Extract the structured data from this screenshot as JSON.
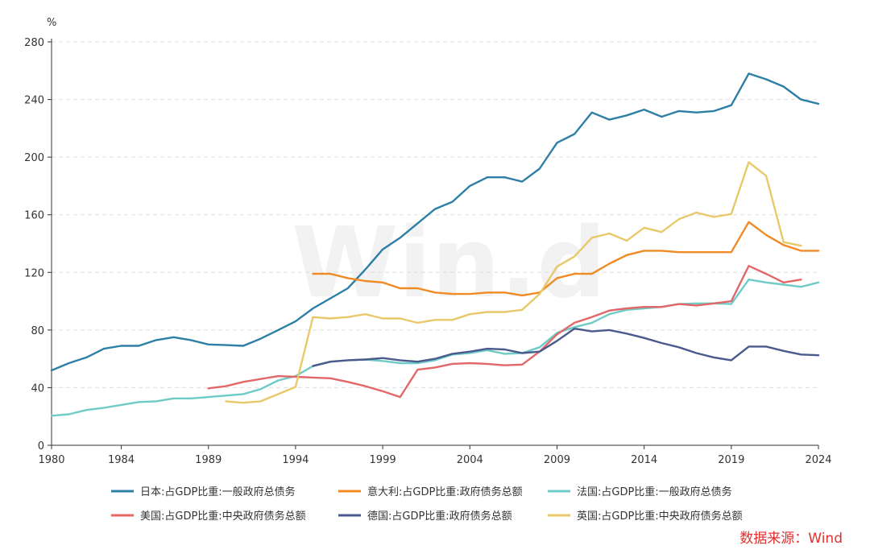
{
  "watermark": "Win.d",
  "source": "数据来源：Wind",
  "colors": {
    "jp": "#2e7fa6",
    "it": "#f08a24",
    "fr": "#6ecbc7",
    "us": "#e26768",
    "de": "#4a5a8c",
    "uk": "#e8c96a"
  },
  "chart_data": {
    "type": "line",
    "ylabel": "%",
    "ylim": [
      0,
      280
    ],
    "yticks": [
      0,
      40,
      80,
      120,
      160,
      200,
      240,
      280
    ],
    "xlim": [
      1980,
      2024
    ],
    "xticks": [
      1980,
      1984,
      1989,
      1994,
      1999,
      2004,
      2009,
      2014,
      2019,
      2024
    ],
    "grid": "horizontal-dashed",
    "legend_position": "bottom",
    "series": [
      {
        "name": "日本:占GDP比重:一般政府总债务",
        "color_key": "jp",
        "x": [
          1980,
          1981,
          1982,
          1983,
          1984,
          1985,
          1986,
          1987,
          1988,
          1989,
          1990,
          1991,
          1992,
          1993,
          1994,
          1995,
          1996,
          1997,
          1998,
          1999,
          2000,
          2001,
          2002,
          2003,
          2004,
          2005,
          2006,
          2007,
          2008,
          2009,
          2010,
          2011,
          2012,
          2013,
          2014,
          2015,
          2016,
          2017,
          2018,
          2019,
          2020,
          2021,
          2022,
          2023,
          2024
        ],
        "values": [
          52,
          57,
          61,
          67,
          69,
          69,
          73,
          75,
          73,
          70,
          69.5,
          69,
          74,
          80,
          86,
          95,
          102,
          109,
          122,
          136,
          144,
          154,
          164,
          169,
          180,
          186,
          186,
          183,
          192,
          210,
          216,
          231,
          226,
          229,
          233,
          228,
          232,
          231,
          232,
          236,
          258,
          254,
          249,
          240,
          237
        ]
      },
      {
        "name": "意大利:占GDP比重:政府债务总额",
        "color_key": "it",
        "x": [
          1995,
          1996,
          1997,
          1998,
          1999,
          2000,
          2001,
          2002,
          2003,
          2004,
          2005,
          2006,
          2007,
          2008,
          2009,
          2010,
          2011,
          2012,
          2013,
          2014,
          2015,
          2016,
          2017,
          2018,
          2019,
          2020,
          2021,
          2022,
          2023,
          2024
        ],
        "values": [
          119,
          119,
          116,
          114,
          113,
          109,
          109,
          106,
          105,
          105,
          106,
          106,
          104,
          106,
          116,
          119,
          119,
          126,
          132,
          135,
          135,
          134,
          134,
          134,
          134,
          155,
          146,
          139,
          135,
          135
        ]
      },
      {
        "name": "法国:占GDP比重:一般政府总债务",
        "color_key": "fr",
        "x": [
          1980,
          1981,
          1982,
          1983,
          1984,
          1985,
          1986,
          1987,
          1988,
          1989,
          1990,
          1991,
          1992,
          1993,
          1994,
          1995,
          1996,
          1997,
          1998,
          1999,
          2000,
          2001,
          2002,
          2003,
          2004,
          2005,
          2006,
          2007,
          2008,
          2009,
          2010,
          2011,
          2012,
          2013,
          2014,
          2015,
          2016,
          2017,
          2018,
          2019,
          2020,
          2021,
          2022,
          2023,
          2024
        ],
        "values": [
          20.5,
          21.5,
          24.5,
          26,
          28,
          30,
          30.5,
          32.5,
          32.5,
          33.5,
          34.5,
          35.5,
          39,
          45,
          48,
          55,
          58,
          59,
          59.5,
          58.5,
          57,
          57,
          59,
          63,
          64,
          66,
          63.5,
          64,
          68,
          78,
          82,
          85,
          91,
          94,
          95,
          96,
          98,
          98.5,
          98.5,
          98,
          115,
          113,
          111.5,
          110,
          113
        ]
      },
      {
        "name": "美国:占GDP比重:中央政府债务总额",
        "color_key": "us",
        "x": [
          1989,
          1990,
          1991,
          1992,
          1993,
          1994,
          1995,
          1996,
          1997,
          1998,
          1999,
          2000,
          2001,
          2002,
          2003,
          2004,
          2005,
          2006,
          2007,
          2008,
          2009,
          2010,
          2011,
          2012,
          2013,
          2014,
          2015,
          2016,
          2017,
          2018,
          2019,
          2020,
          2021,
          2022,
          2023
        ],
        "values": [
          39.5,
          41,
          44,
          46,
          48,
          47.5,
          47,
          46.5,
          44,
          41,
          37.5,
          33.5,
          52.5,
          54,
          56.5,
          57,
          56.5,
          55.5,
          56,
          65,
          77,
          85,
          89,
          93.5,
          95,
          96,
          96,
          98,
          97,
          98.5,
          100,
          124.5,
          119,
          113,
          115
        ]
      },
      {
        "name": "德国:占GDP比重:政府债务总额",
        "color_key": "de",
        "x": [
          1995,
          1996,
          1997,
          1998,
          1999,
          2000,
          2001,
          2002,
          2003,
          2004,
          2005,
          2006,
          2007,
          2008,
          2009,
          2010,
          2011,
          2012,
          2013,
          2014,
          2015,
          2016,
          2017,
          2018,
          2019,
          2020,
          2021,
          2022,
          2023,
          2024
        ],
        "values": [
          55,
          58,
          59,
          59.5,
          60.5,
          59,
          58,
          60,
          63.5,
          65,
          67,
          66.5,
          64,
          65,
          72.5,
          81,
          79,
          80,
          77.5,
          74.5,
          71,
          68,
          64,
          61,
          59,
          68.5,
          68.5,
          65.5,
          63,
          62.5
        ]
      },
      {
        "name": "英国:占GDP比重:中央政府债务总额",
        "color_key": "uk",
        "x": [
          1990,
          1991,
          1992,
          1993,
          1994,
          1995,
          1996,
          1997,
          1998,
          1999,
          2000,
          2001,
          2002,
          2003,
          2004,
          2005,
          2006,
          2007,
          2008,
          2009,
          2010,
          2011,
          2012,
          2013,
          2014,
          2015,
          2016,
          2017,
          2018,
          2019,
          2020,
          2021,
          2022,
          2023
        ],
        "values": [
          30.5,
          29.5,
          30.5,
          35.5,
          40.5,
          89,
          88,
          89,
          91,
          88,
          88,
          85,
          87,
          87,
          91,
          92.5,
          92.5,
          94,
          105,
          124,
          131,
          144,
          147,
          142,
          151,
          148,
          157,
          161.5,
          158.5,
          160.5,
          196.5,
          187,
          141,
          138.5
        ]
      }
    ]
  }
}
